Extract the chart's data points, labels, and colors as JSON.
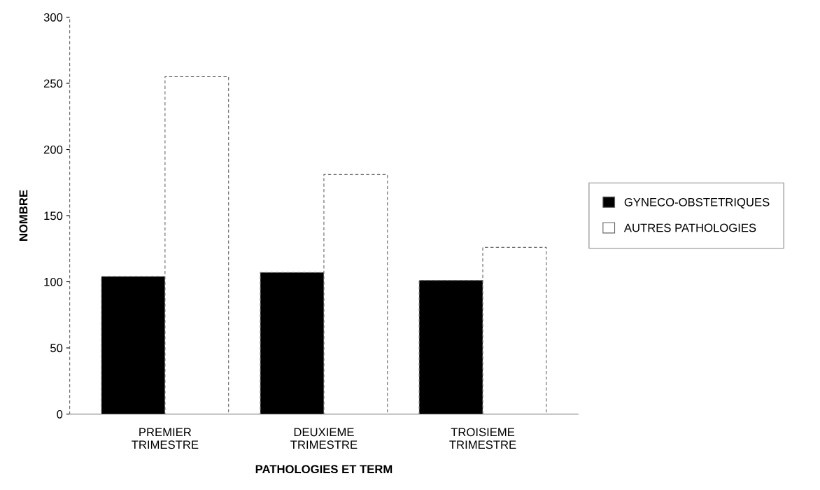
{
  "chart_data": {
    "type": "bar",
    "xlabel": "PATHOLOGIES ET TERM",
    "ylabel": "NOMBRE",
    "categories": [
      "PREMIER\nTRIMESTRE",
      "DEUXIEME\nTRIMESTRE",
      "TROISIEME\nTRIMESTRE"
    ],
    "series": [
      {
        "name": "GYNECO-OBSTETRIQUES",
        "color": "#000000",
        "values": [
          104,
          107,
          101
        ]
      },
      {
        "name": "AUTRES PATHOLOGIES",
        "color": "#ffffff",
        "values": [
          255,
          181,
          126
        ]
      }
    ],
    "ylim": [
      0,
      300
    ],
    "yticks": [
      0,
      50,
      100,
      150,
      200,
      250,
      300
    ],
    "grid": false,
    "legend": "right"
  }
}
